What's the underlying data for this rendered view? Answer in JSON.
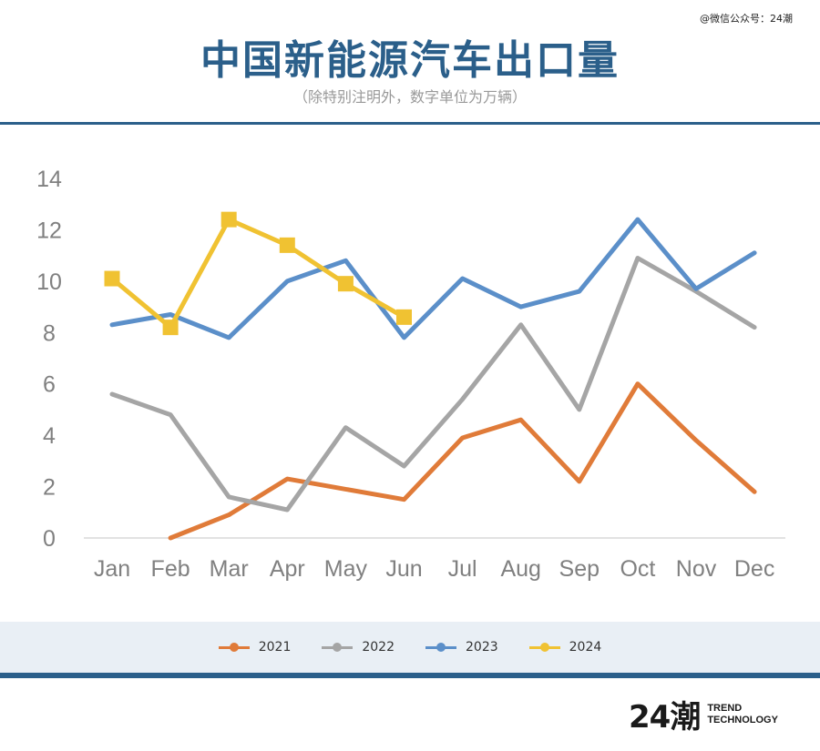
{
  "header": {
    "watermark": "@微信公众号：24潮",
    "title": "中国新能源汽车出口量",
    "subtitle": "（除特别注明外，数字单位为万辆）"
  },
  "brand": {
    "mark": "24潮",
    "line1": "TREND",
    "line2": "TECHNOLOGY"
  },
  "chart_data": {
    "type": "line",
    "title": "中国新能源汽车出口量",
    "subtitle": "（除特别注明外，数字单位为万辆）",
    "xlabel": "",
    "ylabel": "",
    "categories": [
      "Jan",
      "Feb",
      "Mar",
      "Apr",
      "May",
      "Jun",
      "Jul",
      "Aug",
      "Sep",
      "Oct",
      "Nov",
      "Dec"
    ],
    "ylim": [
      0,
      14
    ],
    "yticks": [
      0,
      2,
      4,
      6,
      8,
      10,
      12,
      14
    ],
    "grid": false,
    "legend_position": "bottom",
    "series": [
      {
        "name": "2021",
        "color": "#e07b39",
        "values": [
          null,
          0.0,
          0.9,
          2.3,
          1.9,
          1.5,
          3.9,
          4.6,
          2.2,
          6.0,
          3.8,
          1.8
        ]
      },
      {
        "name": "2022",
        "color": "#a5a5a5",
        "values": [
          5.6,
          4.8,
          1.6,
          1.1,
          4.3,
          2.8,
          5.4,
          8.3,
          5.0,
          10.9,
          9.6,
          8.2
        ]
      },
      {
        "name": "2023",
        "color": "#5b8fc9",
        "values": [
          8.3,
          8.7,
          7.8,
          10.0,
          10.8,
          7.8,
          10.1,
          9.0,
          9.6,
          12.4,
          9.7,
          11.1
        ]
      },
      {
        "name": "2024",
        "color": "#f0c232",
        "marker": "square",
        "values": [
          10.1,
          8.2,
          12.4,
          11.4,
          9.9,
          8.6,
          null,
          null,
          null,
          null,
          null,
          null
        ]
      }
    ]
  }
}
